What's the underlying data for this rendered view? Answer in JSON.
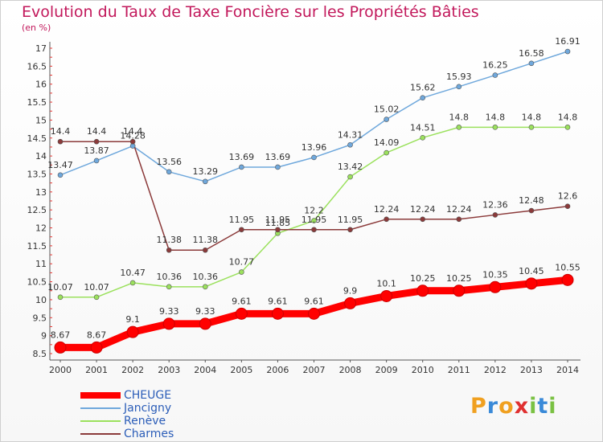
{
  "header": {
    "title": "Evolution du Taux de Taxe Foncière sur les Propriétés Bâties",
    "unit": "(en %)"
  },
  "logo": {
    "letters": [
      "P",
      "r",
      "o",
      "x",
      "i",
      "t",
      "i"
    ],
    "colors": [
      "#f0a020",
      "#3a8ad8",
      "#f0a020",
      "#e03030",
      "#7ac143",
      "#3a8ad8",
      "#7ac143"
    ]
  },
  "chart_data": {
    "type": "line",
    "title": "Evolution du Taux de Taxe Foncière sur les Propriétés Bâties",
    "ylabel": "(en %)",
    "xlabel": "",
    "categories": [
      "2000",
      "2001",
      "2002",
      "2003",
      "2004",
      "2005",
      "2006",
      "2007",
      "2008",
      "2009",
      "2010",
      "2011",
      "2012",
      "2013",
      "2014"
    ],
    "ylim": [
      8.5,
      17
    ],
    "yticks": [
      "8.5",
      "9",
      "9.5",
      "10",
      "10.5",
      "11",
      "11.5",
      "12",
      "12.5",
      "13",
      "13.5",
      "14",
      "14.5",
      "15",
      "15.5",
      "16",
      "16.5",
      "17"
    ],
    "grid": false,
    "legend_position": "bottom-left",
    "series": [
      {
        "name": "CHEUGE",
        "color": "#ff0000",
        "values": [
          8.67,
          8.67,
          9.1,
          9.33,
          9.33,
          9.61,
          9.61,
          9.61,
          9.9,
          10.1,
          10.25,
          10.25,
          10.35,
          10.45,
          10.55
        ],
        "labels": [
          "8.67",
          "8.67",
          "9.1",
          "9.33",
          "9.33",
          "9.61",
          "9.61",
          "9.61",
          "9.9",
          "10.1",
          "10.25",
          "10.25",
          "10.35",
          "10.45",
          "10.55"
        ]
      },
      {
        "name": "Jancigny",
        "color": "#6fa8dc",
        "values": [
          13.47,
          13.87,
          14.28,
          13.56,
          13.29,
          13.69,
          13.69,
          13.96,
          14.31,
          15.02,
          15.62,
          15.93,
          16.25,
          16.58,
          16.91
        ],
        "labels": [
          "13.47",
          "13.87",
          "14.28",
          "13.56",
          "13.29",
          "13.69",
          "13.69",
          "13.96",
          "14.31",
          "15.02",
          "15.62",
          "15.93",
          "16.25",
          "16.58",
          "16.91"
        ]
      },
      {
        "name": "Renève",
        "color": "#9be15d",
        "values": [
          10.07,
          10.07,
          10.47,
          10.36,
          10.36,
          10.77,
          11.85,
          12.2,
          13.42,
          14.09,
          14.51,
          14.8,
          14.8,
          14.8,
          14.8
        ],
        "labels": [
          "10.07",
          "10.07",
          "10.47",
          "10.36",
          "10.36",
          "10.77",
          "11.85",
          "12.2",
          "13.42",
          "14.09",
          "14.51",
          "14.8",
          "14.8",
          "14.8",
          "14.8"
        ]
      },
      {
        "name": "Charmes",
        "color": "#8b3a3a",
        "values": [
          14.4,
          14.4,
          14.4,
          11.38,
          11.38,
          11.95,
          11.95,
          11.95,
          11.95,
          12.24,
          12.24,
          12.24,
          12.36,
          12.48,
          12.6
        ],
        "labels": [
          "14.4",
          "14.4",
          "14.4",
          "11.38",
          "11.38",
          "11.95",
          "11.95",
          "11.95",
          "11.95",
          "12.24",
          "12.24",
          "12.24",
          "12.36",
          "12.48",
          "12.6"
        ]
      }
    ]
  }
}
